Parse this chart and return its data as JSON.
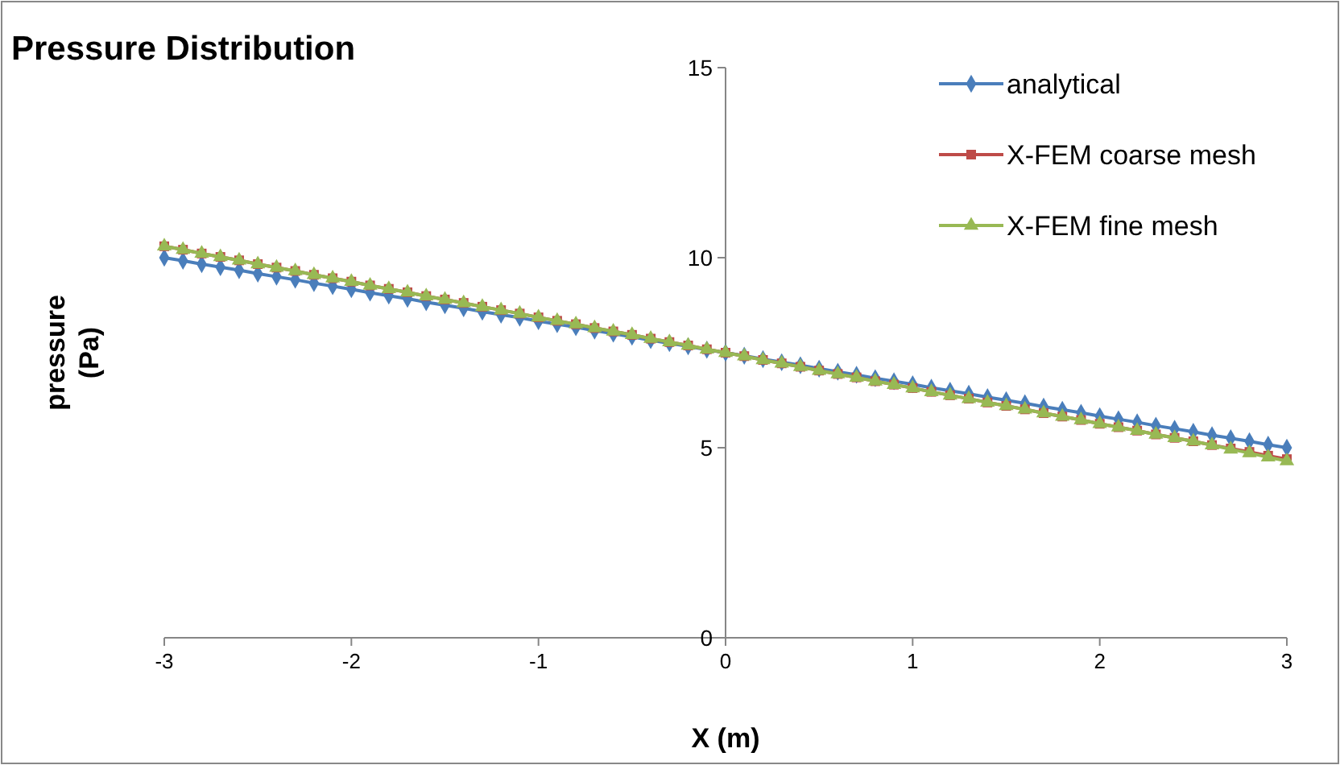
{
  "chart_data": {
    "type": "line",
    "title": "Pressure Distribution",
    "xlabel": "X (m)",
    "ylabel": "pressure (Pa)",
    "x": [
      -3,
      -2.9,
      -2.8,
      -2.7,
      -2.6,
      -2.5,
      -2.4,
      -2.3,
      -2.2,
      -2.1,
      -2,
      -1.9,
      -1.8,
      -1.7,
      -1.6,
      -1.5,
      -1.4,
      -1.3,
      -1.2,
      -1.1,
      -1,
      -0.9,
      -0.8,
      -0.7,
      -0.6,
      -0.5,
      -0.4,
      -0.3,
      -0.2,
      -0.1,
      0,
      0.1,
      0.2,
      0.3,
      0.4,
      0.5,
      0.6,
      0.7,
      0.8,
      0.9,
      1,
      1.1,
      1.2,
      1.3,
      1.4,
      1.5,
      1.6,
      1.7,
      1.8,
      1.9,
      2,
      2.1,
      2.2,
      2.3,
      2.4,
      2.5,
      2.6,
      2.7,
      2.8,
      2.9,
      3
    ],
    "series": [
      {
        "name": "analytical",
        "color": "#4a7ebb",
        "marker": "diamond",
        "values": [
          10,
          9.92,
          9.83,
          9.75,
          9.67,
          9.58,
          9.5,
          9.42,
          9.33,
          9.25,
          9.17,
          9.08,
          9,
          8.92,
          8.83,
          8.75,
          8.67,
          8.58,
          8.5,
          8.42,
          8.33,
          8.25,
          8.17,
          8.08,
          8,
          7.92,
          7.83,
          7.75,
          7.67,
          7.58,
          7.5,
          7.42,
          7.33,
          7.25,
          7.17,
          7.08,
          7,
          6.92,
          6.83,
          6.75,
          6.67,
          6.58,
          6.5,
          6.42,
          6.33,
          6.25,
          6.17,
          6.08,
          6,
          5.92,
          5.83,
          5.75,
          5.67,
          5.58,
          5.5,
          5.42,
          5.33,
          5.25,
          5.17,
          5.08,
          5
        ]
      },
      {
        "name": "X-FEM coarse mesh",
        "color": "#be4b48",
        "marker": "square",
        "values": [
          10.3,
          10.21,
          10.11,
          10.02,
          9.93,
          9.83,
          9.74,
          9.65,
          9.55,
          9.46,
          9.37,
          9.27,
          9.18,
          9.09,
          8.99,
          8.9,
          8.81,
          8.71,
          8.62,
          8.53,
          8.43,
          8.34,
          8.25,
          8.15,
          8.06,
          7.97,
          7.87,
          7.78,
          7.69,
          7.59,
          7.5,
          7.41,
          7.31,
          7.22,
          7.13,
          7.03,
          6.94,
          6.85,
          6.75,
          6.66,
          6.57,
          6.47,
          6.38,
          6.29,
          6.19,
          6.1,
          6.01,
          5.91,
          5.82,
          5.73,
          5.63,
          5.54,
          5.45,
          5.35,
          5.26,
          5.17,
          5.07,
          4.98,
          4.89,
          4.79,
          4.7
        ]
      },
      {
        "name": "X-FEM fine mesh",
        "color": "#98b954",
        "marker": "triangle",
        "values": [
          10.3,
          10.21,
          10.11,
          10.02,
          9.93,
          9.83,
          9.74,
          9.65,
          9.55,
          9.46,
          9.37,
          9.27,
          9.18,
          9.09,
          8.99,
          8.9,
          8.81,
          8.71,
          8.62,
          8.53,
          8.43,
          8.34,
          8.25,
          8.15,
          8.06,
          7.97,
          7.87,
          7.78,
          7.69,
          7.59,
          7.5,
          7.41,
          7.31,
          7.22,
          7.13,
          7.03,
          6.94,
          6.85,
          6.75,
          6.66,
          6.57,
          6.47,
          6.38,
          6.29,
          6.19,
          6.1,
          6.01,
          5.91,
          5.82,
          5.73,
          5.63,
          5.54,
          5.45,
          5.35,
          5.26,
          5.17,
          5.07,
          4.96,
          4.86,
          4.75,
          4.65
        ]
      }
    ],
    "xlim": [
      -3,
      3
    ],
    "xticks": [
      -3,
      -2,
      -1,
      0,
      1,
      2,
      3
    ],
    "ylim": [
      0,
      15
    ],
    "yticks": [
      0,
      5,
      10,
      15
    ],
    "grid": false,
    "legend": "top right"
  }
}
